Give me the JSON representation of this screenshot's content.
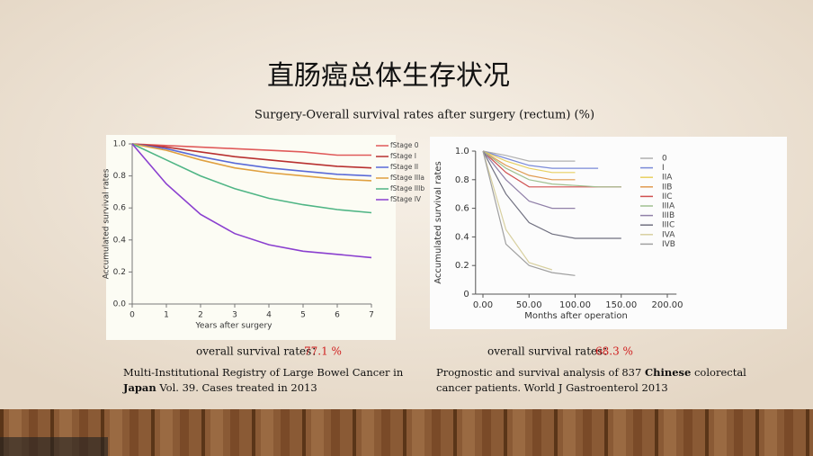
{
  "slide": {
    "title": "直肠癌总体生存状况",
    "subtitle": "Surgery-Overall survival rates after surgery (rectum) (%)",
    "left_note": {
      "label": "overall survival rates：",
      "value": "77.1 %"
    },
    "right_note": {
      "label": "overall survival rates：",
      "value": "68.3 %"
    },
    "left_source": {
      "line1": "Multi-Institutional Registry of Large Bowel Cancer in",
      "bold": "Japan",
      "line2": " Vol. 39. Cases treated in 2013"
    },
    "right_source": {
      "line1a": "Prognostic and survival analysis of 837 ",
      "bold": "Chinese",
      "line1b": " colorectal",
      "line2": "cancer patients. World J Gastroenterol 2013"
    }
  },
  "chart_data": [
    {
      "type": "line",
      "x_label": "Years after surgery",
      "y_label": "Accumulated survival rates",
      "x": [
        0,
        1,
        2,
        3,
        4,
        5,
        6,
        7
      ],
      "xlim": [
        0,
        7
      ],
      "xticks": [
        0,
        1,
        2,
        3,
        4,
        5,
        6,
        7
      ],
      "ylim": [
        0,
        1
      ],
      "yticks": [
        {
          "value": 0,
          "label": "0.0"
        },
        0.2,
        0.4,
        0.6,
        0.8,
        {
          "value": 1,
          "label": "1.0"
        }
      ],
      "series": [
        {
          "name": "fStage 0",
          "color": "#e05a5a",
          "values": [
            1,
            0.99,
            0.98,
            0.97,
            0.96,
            0.95,
            0.93,
            0.93
          ]
        },
        {
          "name": "fStage I",
          "color": "#b83030",
          "values": [
            1,
            0.98,
            0.95,
            0.92,
            0.9,
            0.88,
            0.86,
            0.85
          ]
        },
        {
          "name": "fStage II",
          "color": "#5a6ad8",
          "values": [
            1,
            0.97,
            0.92,
            0.88,
            0.85,
            0.83,
            0.81,
            0.8
          ]
        },
        {
          "name": "fStage IIIa",
          "color": "#e0a040",
          "values": [
            1,
            0.96,
            0.9,
            0.85,
            0.82,
            0.8,
            0.78,
            0.77
          ]
        },
        {
          "name": "fStage IIIb",
          "color": "#4fb585",
          "values": [
            1,
            0.9,
            0.8,
            0.72,
            0.66,
            0.62,
            0.59,
            0.57
          ]
        },
        {
          "name": "fStage IV",
          "color": "#8a3fcf",
          "values": [
            1,
            0.75,
            0.56,
            0.44,
            0.37,
            0.33,
            0.31,
            0.29
          ]
        }
      ]
    },
    {
      "type": "line",
      "x_label": "Months after operation",
      "y_label": "Accumulated survival rates",
      "x": [
        0,
        25,
        50,
        75,
        100,
        125,
        150
      ],
      "xlim": [
        -8,
        210
      ],
      "xticks": [
        {
          "value": 0,
          "label": "0.00"
        },
        {
          "value": 50,
          "label": "50.00"
        },
        {
          "value": 100,
          "label": "100.00"
        },
        {
          "value": 150,
          "label": "150.00"
        },
        {
          "value": 200,
          "label": "200.00"
        }
      ],
      "ylim": [
        0,
        1
      ],
      "yticks": [
        0,
        0.2,
        0.4,
        0.6,
        0.8,
        {
          "value": 1,
          "label": "1.0"
        }
      ],
      "series": [
        {
          "name": "0",
          "color": "#b0b0b0",
          "values": [
            1,
            0.97,
            0.93,
            0.93,
            0.93,
            null,
            null
          ]
        },
        {
          "name": "I",
          "color": "#7a8ad8",
          "values": [
            1,
            0.95,
            0.9,
            0.88,
            0.88,
            0.88,
            null
          ]
        },
        {
          "name": "IIA",
          "color": "#e8d060",
          "values": [
            1,
            0.93,
            0.88,
            0.85,
            0.85,
            null,
            null
          ]
        },
        {
          "name": "IIB",
          "color": "#e09a50",
          "values": [
            1,
            0.9,
            0.83,
            0.8,
            0.8,
            null,
            null
          ]
        },
        {
          "name": "IIC",
          "color": "#d05050",
          "values": [
            1,
            0.85,
            0.75,
            0.75,
            0.75,
            0.75,
            0.75
          ]
        },
        {
          "name": "IIIA",
          "color": "#a0c090",
          "values": [
            1,
            0.88,
            0.8,
            0.77,
            0.76,
            0.75,
            0.75
          ]
        },
        {
          "name": "IIIB",
          "color": "#9080a8",
          "values": [
            1,
            0.8,
            0.65,
            0.6,
            0.6,
            null,
            null
          ]
        },
        {
          "name": "IIIC",
          "color": "#707080",
          "values": [
            1,
            0.7,
            0.5,
            0.42,
            0.39,
            0.39,
            0.39
          ]
        },
        {
          "name": "IVA",
          "color": "#d8d0a0",
          "values": [
            1,
            0.45,
            0.22,
            0.17,
            null,
            null,
            null
          ]
        },
        {
          "name": "IVB",
          "color": "#a0a0a0",
          "values": [
            1,
            0.35,
            0.2,
            0.15,
            0.13,
            null,
            null
          ]
        }
      ]
    }
  ]
}
